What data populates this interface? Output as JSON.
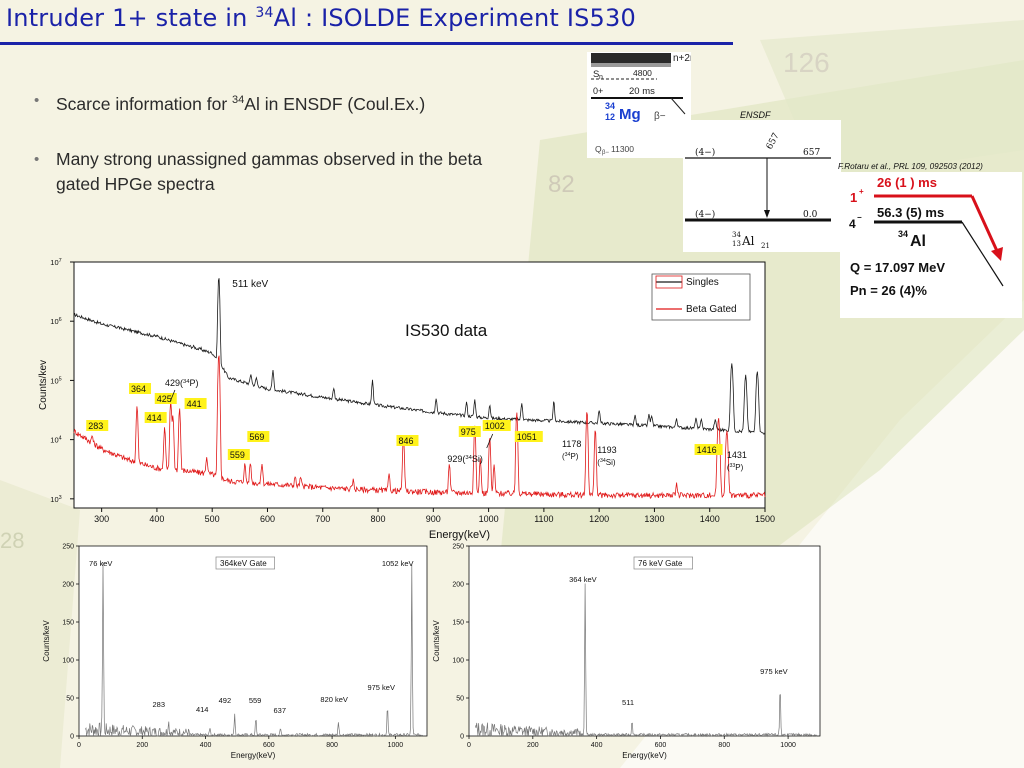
{
  "slide": {
    "title_pre": "Intruder 1+ state in ",
    "title_sup": "34",
    "title_post": "Al : ISOLDE Experiment IS530",
    "bullets": [
      {
        "pre": "Scarce information for ",
        "sup": "34",
        "post": "Al in ENSDF (Coul.Ex.)"
      },
      {
        "pre": "Many strong unassigned gammas observed in the beta gated HPGe spectra",
        "sup": "",
        "post": ""
      }
    ],
    "accent_color": "#1a22a8"
  },
  "mg_inset": {
    "labels": [
      "n+2n",
      "S",
      "n",
      "4800",
      "0+",
      "20 ms",
      "34",
      "12",
      "Mg",
      "β−",
      "Q",
      "β−",
      "11300"
    ]
  },
  "ensdf_inset": {
    "source": "ENSDF",
    "level_high_jp": "(4−)",
    "level_high_e": "657",
    "gamma": "657",
    "level_low_jp": "(4−)",
    "level_low_e": "0.0",
    "nucleus_a": "34",
    "nucleus_z": "13",
    "nucleus_sym": "Al",
    "nucleus_n": "21"
  },
  "rotaru_inset": {
    "citation": "F.Rotaru et al., PRL 109, 092503 (2012)",
    "level_1_jp": "1",
    "level_1_sup": "+",
    "level_1_halflife": "26 (1 ) ms",
    "level_0_jp": "4",
    "level_0_sup": "−",
    "level_0_halflife": "56.3 (5) ms",
    "nucleus_sup": "34",
    "nucleus_sym": "Al",
    "q_value": "Q   = 17.097 MeV",
    "pn_value": "Pn = 26 (4)%",
    "arrow_color": "#d8101a"
  },
  "chart_data": [
    {
      "type": "line",
      "title": "IS530 data",
      "xlabel": "Energy(keV)",
      "ylabel": "Counts/kev",
      "xlim": [
        250,
        1500
      ],
      "ylim": [
        700,
        10000000
      ],
      "yscale": "log",
      "x_ticks": [
        "300",
        "400",
        "500",
        "600",
        "700",
        "800",
        "900",
        "1000",
        "1100",
        "1200",
        "1300",
        "1400",
        "1500"
      ],
      "x_tick_values": [
        300,
        400,
        500,
        600,
        700,
        800,
        900,
        1000,
        1100,
        1200,
        1300,
        1400,
        1500
      ],
      "y_ticks": [
        {
          "base": "10",
          "exp": "3",
          "value": 1000
        },
        {
          "base": "10",
          "exp": "4",
          "value": 10000
        },
        {
          "base": "10",
          "exp": "5",
          "value": 100000
        },
        {
          "base": "10",
          "exp": "6",
          "value": 1000000
        },
        {
          "base": "10",
          "exp": "7",
          "value": 10000000
        }
      ],
      "legend": {
        "placement": "top-right",
        "entries": [
          "Singles",
          "Beta Gated"
        ]
      },
      "series": [
        {
          "name": "Singles",
          "color": "#1a1a1a",
          "baseline": [
            [
              250,
              1300000
            ],
            [
              300,
              900000
            ],
            [
              400,
              550000
            ],
            [
              500,
              290000
            ],
            [
              512,
              210000
            ],
            [
              530,
              110000
            ],
            [
              600,
              72000
            ],
            [
              700,
              52000
            ],
            [
              800,
              38000
            ],
            [
              900,
              29000
            ],
            [
              1000,
              23000
            ],
            [
              1100,
              21000
            ],
            [
              1200,
              19000
            ],
            [
              1300,
              17000
            ],
            [
              1400,
              15000
            ],
            [
              1475,
              13500
            ],
            [
              1500,
              13000
            ]
          ],
          "peaks": [
            [
              330,
              30000
            ],
            [
              347,
              22000
            ],
            [
              400,
              16000
            ],
            [
              467,
              14000
            ],
            [
              480,
              12000
            ],
            [
              512,
              5500000
            ],
            [
              570,
              42000
            ],
            [
              580,
              30000
            ],
            [
              610,
              80000
            ],
            [
              720,
              26000
            ],
            [
              790,
              62000
            ],
            [
              905,
              22000
            ],
            [
              960,
              18000
            ],
            [
              975,
              23000
            ],
            [
              1002,
              16000
            ],
            [
              1060,
              20000
            ],
            [
              1118,
              24000
            ],
            [
              1200,
              13000
            ],
            [
              1265,
              8000
            ],
            [
              1290,
              9500
            ],
            [
              1295,
              8500
            ],
            [
              1340,
              7000
            ],
            [
              1375,
              8000
            ],
            [
              1385,
              7500
            ],
            [
              1410,
              6500
            ],
            [
              1440,
              180000
            ],
            [
              1465,
              110000
            ],
            [
              1486,
              130000
            ]
          ]
        },
        {
          "name": "Beta Gated",
          "color": "#e01818",
          "baseline": [
            [
              250,
              14000
            ],
            [
              300,
              7000
            ],
            [
              350,
              4500
            ],
            [
              400,
              3300
            ],
            [
              450,
              3000
            ],
            [
              500,
              2600
            ],
            [
              530,
              2000
            ],
            [
              600,
              1800
            ],
            [
              700,
              1550
            ],
            [
              800,
              1400
            ],
            [
              900,
              1300
            ],
            [
              1000,
              1250
            ],
            [
              1100,
              1200
            ],
            [
              1200,
              1150
            ],
            [
              1300,
              1150
            ],
            [
              1400,
              1150
            ],
            [
              1500,
              1150
            ]
          ],
          "peaks": [
            [
              283,
              2800
            ],
            [
              364,
              33000
            ],
            [
              414,
              13000
            ],
            [
              425,
              42000
            ],
            [
              429,
              22000
            ],
            [
              441,
              31000
            ],
            [
              490,
              2500
            ],
            [
              512,
              280000
            ],
            [
              559,
              2000
            ],
            [
              569,
              2200
            ],
            [
              590,
              2200
            ],
            [
              650,
              700
            ],
            [
              660,
              650
            ],
            [
              755,
              600
            ],
            [
              820,
              1200
            ],
            [
              846,
              10000
            ],
            [
              929,
              2700
            ],
            [
              975,
              16000
            ],
            [
              985,
              3500
            ],
            [
              1002,
              10000
            ],
            [
              1010,
              2500
            ],
            [
              1051,
              28000
            ],
            [
              1178,
              30000
            ],
            [
              1193,
              14000
            ],
            [
              1340,
              700
            ],
            [
              1416,
              22000
            ],
            [
              1431,
              13000
            ]
          ]
        }
      ],
      "annotations": [
        {
          "text": "511 keV",
          "x": 511
        },
        {
          "text": "364",
          "x": 364,
          "highlight": true
        },
        {
          "text": "425",
          "x": 425,
          "highlight": true
        },
        {
          "text": "414",
          "x": 414,
          "highlight": true
        },
        {
          "text": "441",
          "x": 441,
          "highlight": true
        },
        {
          "text": "283",
          "x": 283,
          "highlight": true
        },
        {
          "text": "569",
          "x": 569,
          "highlight": true
        },
        {
          "text": "559",
          "x": 559,
          "highlight": true
        },
        {
          "text": "846",
          "x": 846,
          "highlight": true
        },
        {
          "text": "975",
          "x": 975,
          "highlight": true
        },
        {
          "text": "1002",
          "x": 1002,
          "highlight": true
        },
        {
          "text": "1051",
          "x": 1051,
          "highlight": true
        },
        {
          "text": "1416",
          "x": 1416,
          "highlight": true
        },
        {
          "text": "429(",
          "sup": "34",
          "post": "P)",
          "x": 429
        },
        {
          "text": "929(",
          "sup": "34",
          "post": "Si)",
          "x": 929
        },
        {
          "text": "1178",
          "line2": "(",
          "sup": "34",
          "post": "P)",
          "x": 1178
        },
        {
          "text": "1193",
          "line2": "(",
          "sup": "34",
          "post": "Si)",
          "x": 1193
        },
        {
          "text": "1431",
          "line2": "(",
          "sup": "33",
          "post": "P)",
          "x": 1431
        }
      ],
      "highlight_color": "#fff21a"
    },
    {
      "type": "line",
      "title": "364keV Gate",
      "xlabel": "Energy(keV)",
      "ylabel": "Counts/keV",
      "xlim": [
        0,
        1100
      ],
      "ylim": [
        0,
        250
      ],
      "x_ticks": [
        "0",
        "200",
        "400",
        "600",
        "800",
        "1000"
      ],
      "x_tick_values": [
        0,
        200,
        400,
        600,
        800,
        1000
      ],
      "y_ticks": [
        "0",
        "50",
        "100",
        "150",
        "200",
        "250"
      ],
      "y_tick_values": [
        0,
        50,
        100,
        150,
        200,
        250
      ],
      "series": [
        {
          "name": "",
          "color": "#777777",
          "peaks": [
            [
              76,
              222
            ],
            [
              283,
              15
            ],
            [
              414,
              10
            ],
            [
              492,
              28
            ],
            [
              559,
              22
            ],
            [
              637,
              8
            ],
            [
              820,
              18
            ],
            [
              975,
              38
            ],
            [
              1052,
              225
            ]
          ]
        }
      ],
      "annotations": [
        {
          "text": "76 keV",
          "x": 76
        },
        {
          "text": "1052 keV",
          "x": 1052
        },
        {
          "text": "283",
          "x": 283
        },
        {
          "text": "414",
          "x": 414
        },
        {
          "text": "492",
          "x": 492
        },
        {
          "text": "559",
          "x": 559
        },
        {
          "text": "637",
          "x": 637
        },
        {
          "text": "820 keV",
          "x": 820
        },
        {
          "text": "975 keV",
          "x": 975
        }
      ]
    },
    {
      "type": "line",
      "title": "76 keV Gate",
      "xlabel": "Energy(keV)",
      "ylabel": "Counts/keV",
      "xlim": [
        0,
        1100
      ],
      "ylim": [
        0,
        250
      ],
      "x_ticks": [
        "0",
        "200",
        "400",
        "600",
        "800",
        "1000"
      ],
      "x_tick_values": [
        0,
        200,
        400,
        600,
        800,
        1000
      ],
      "y_ticks": [
        "0",
        "50",
        "100",
        "150",
        "200",
        "250"
      ],
      "y_tick_values": [
        0,
        50,
        100,
        150,
        200,
        250
      ],
      "series": [
        {
          "name": "",
          "color": "#777777",
          "peaks": [
            [
              364,
              200
            ],
            [
              511,
              20
            ],
            [
              975,
              65
            ]
          ]
        }
      ],
      "annotations": [
        {
          "text": "364 keV",
          "x": 364
        },
        {
          "text": "511",
          "x": 511
        },
        {
          "text": "975 keV",
          "x": 975
        }
      ]
    }
  ]
}
